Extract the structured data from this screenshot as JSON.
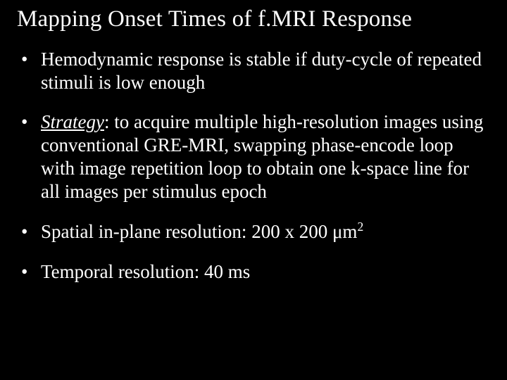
{
  "slide": {
    "background_color": "#000000",
    "text_color": "#ffffff",
    "font_family": "Times New Roman",
    "title": "Mapping Onset Times of f.MRI Response",
    "title_fontsize": 33,
    "bullet_fontsize": 27,
    "bullets": [
      {
        "text": "Hemodynamic response is stable if duty-cycle of repeated stimuli is low enough"
      },
      {
        "label": "Strategy",
        "label_underline": true,
        "label_italic": true,
        "text": ": to acquire multiple high-resolution images using conventional GRE-MRI, swapping phase-encode loop with image repetition loop to obtain one k-space line for all images per stimulus epoch"
      },
      {
        "text_pre": "Spatial in-plane resolution: 200 x 200 ",
        "unit": "μm",
        "sup": "2"
      },
      {
        "text": "Temporal resolution: 40 ms"
      }
    ]
  }
}
